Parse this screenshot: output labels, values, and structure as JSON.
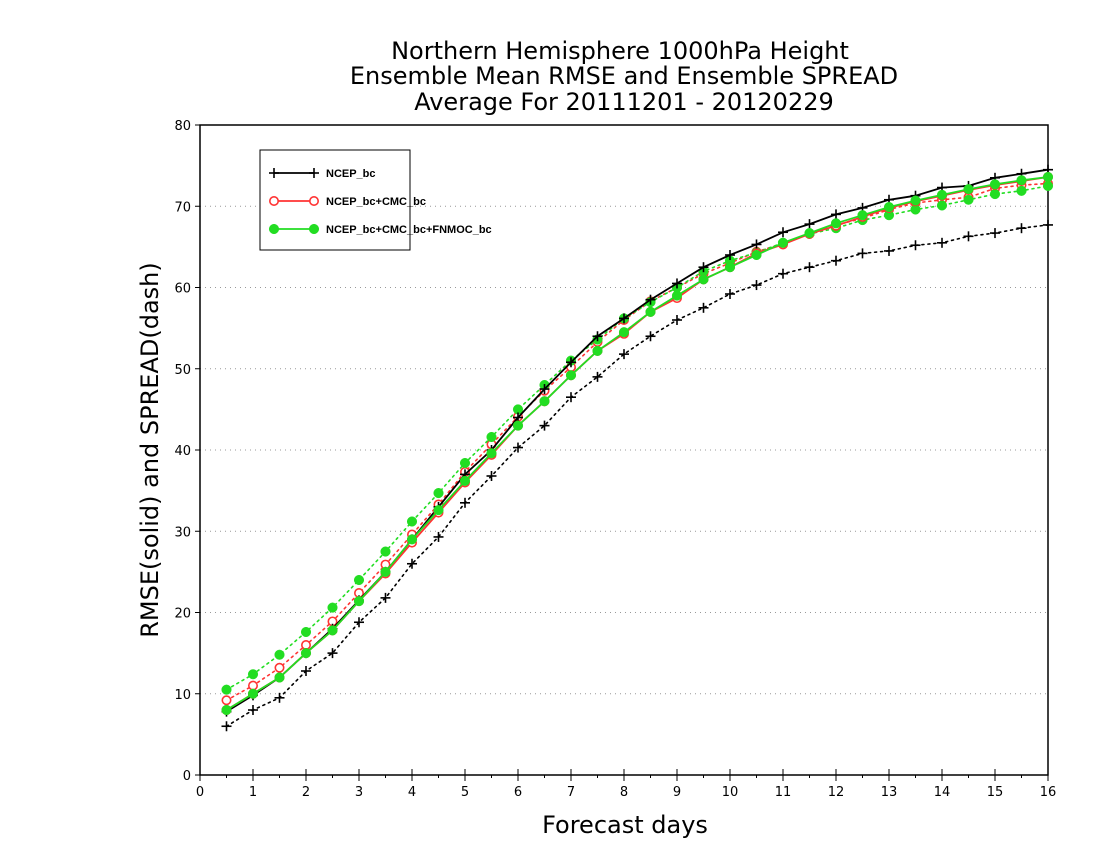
{
  "chart_data": {
    "type": "line",
    "title": [
      "Northern Hemisphere 1000hPa Height",
      "Ensemble Mean RMSE and Ensemble SPREAD",
      "Average For 20111201 - 20120229"
    ],
    "xlabel": "Forecast days",
    "ylabel": "RMSE(solid) and SPREAD(dash)",
    "xlim": [
      0,
      16
    ],
    "ylim": [
      0,
      80
    ],
    "xticks": [
      0,
      1,
      2,
      3,
      4,
      5,
      6,
      7,
      8,
      9,
      10,
      11,
      12,
      13,
      14,
      15,
      16
    ],
    "yticks": [
      0,
      10,
      20,
      30,
      40,
      50,
      60,
      70,
      80
    ],
    "grid": "horizontal dotted",
    "legend_position": "top-left",
    "x": [
      0.5,
      1,
      1.5,
      2,
      2.5,
      3,
      3.5,
      4,
      4.5,
      5,
      5.5,
      6,
      6.5,
      7,
      7.5,
      8,
      8.5,
      9,
      9.5,
      10,
      10.5,
      11,
      11.5,
      12,
      12.5,
      13,
      13.5,
      14,
      14.5,
      15,
      15.5,
      16
    ],
    "series": [
      {
        "name": "NCEP_bc",
        "color": "#000000",
        "marker": "plus",
        "rmse": [
          7.8,
          9.8,
          12.0,
          15.0,
          18.0,
          21.5,
          25.0,
          29.0,
          33.0,
          37.0,
          40.0,
          44.0,
          47.5,
          50.8,
          54.0,
          56.2,
          58.5,
          60.5,
          62.5,
          64.0,
          65.3,
          66.8,
          67.8,
          69.0,
          69.8,
          70.8,
          71.3,
          72.3,
          72.5,
          73.5,
          74.0,
          74.5
        ],
        "spread": [
          6.0,
          8.0,
          9.5,
          12.8,
          15.0,
          18.8,
          21.8,
          26.0,
          29.3,
          33.5,
          36.8,
          40.3,
          43.0,
          46.5,
          49.0,
          51.8,
          54.0,
          56.0,
          57.5,
          59.2,
          60.3,
          61.7,
          62.5,
          63.3,
          64.2,
          64.5,
          65.2,
          65.5,
          66.3,
          66.7,
          67.3,
          67.7
        ]
      },
      {
        "name": "NCEP_bc+CMC_bc",
        "color": "#ff3333",
        "marker": "open-circle",
        "rmse": [
          8.0,
          10.0,
          12.0,
          15.0,
          17.8,
          21.4,
          24.8,
          28.6,
          32.3,
          36.0,
          39.4,
          43.0,
          46.0,
          49.2,
          52.2,
          54.3,
          57.0,
          58.7,
          61.0,
          62.5,
          64.2,
          65.3,
          66.6,
          67.6,
          68.7,
          69.8,
          70.6,
          71.3,
          72.0,
          72.6,
          73.1,
          73.6
        ],
        "spread": [
          9.2,
          11.0,
          13.2,
          16.0,
          18.9,
          22.4,
          25.9,
          29.6,
          33.3,
          37.3,
          40.7,
          44.1,
          47.3,
          50.2,
          53.3,
          56.0,
          58.3,
          60.0,
          61.7,
          63.0,
          64.4,
          65.4,
          66.6,
          67.7,
          68.5,
          69.6,
          70.4,
          70.8,
          71.1,
          72.2,
          72.6,
          72.8
        ]
      },
      {
        "name": "NCEP_bc+CMC_bc+FNMOC_bc",
        "color": "#22dd22",
        "marker": "filled-circle",
        "rmse": [
          8.0,
          10.0,
          12.0,
          15.0,
          17.8,
          21.4,
          25.0,
          29.0,
          32.6,
          36.2,
          39.6,
          43.0,
          46.0,
          49.2,
          52.2,
          54.5,
          57.0,
          59.0,
          61.0,
          62.5,
          64.0,
          65.5,
          66.7,
          67.9,
          68.9,
          69.9,
          70.7,
          71.4,
          72.1,
          72.7,
          73.2,
          73.6
        ],
        "spread": [
          10.5,
          12.4,
          14.8,
          17.6,
          20.6,
          24.0,
          27.5,
          31.2,
          34.7,
          38.4,
          41.6,
          45.0,
          48.0,
          51.0,
          53.6,
          56.2,
          58.2,
          60.0,
          62.0,
          63.3,
          64.3,
          65.5,
          66.6,
          67.3,
          68.3,
          68.9,
          69.6,
          70.1,
          70.8,
          71.5,
          71.9,
          72.5
        ]
      }
    ]
  }
}
